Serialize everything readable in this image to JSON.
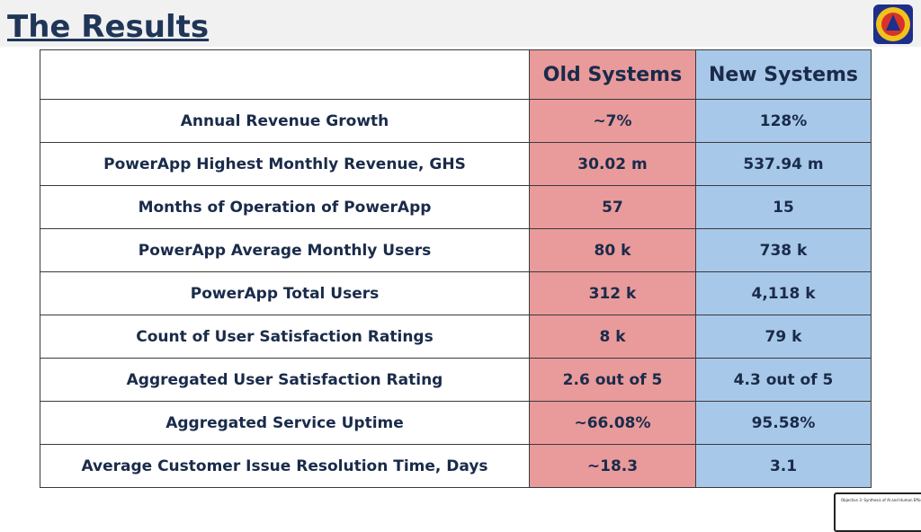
{
  "header": {
    "title": "The Results"
  },
  "table": {
    "columns": [
      "Old Systems",
      "New Systems"
    ],
    "rows": [
      [
        "Annual Revenue Growth",
        "~7%",
        "128%"
      ],
      [
        "PowerApp Highest Monthly Revenue, GHS",
        "30.02 m",
        "537.94 m"
      ],
      [
        "Months of Operation of PowerApp",
        "57",
        "15"
      ],
      [
        "PowerApp Average Monthly Users",
        "80 k",
        "738 k"
      ],
      [
        "PowerApp Total Users",
        "312 k",
        "4,118 k"
      ],
      [
        "Count of User Satisfaction Ratings",
        "8 k",
        "79 k"
      ],
      [
        "Aggregated User Satisfaction Rating",
        "2.6 out of 5",
        "4.3 out of 5"
      ],
      [
        "Aggregated Service Uptime",
        "~66.08%",
        "95.58%"
      ],
      [
        "Average Customer Issue Resolution Time, Days",
        "~18.3",
        "3.1"
      ]
    ]
  },
  "thumbnail": {
    "text": "Objective 3: Synthesis of AI and Human Efforts"
  }
}
